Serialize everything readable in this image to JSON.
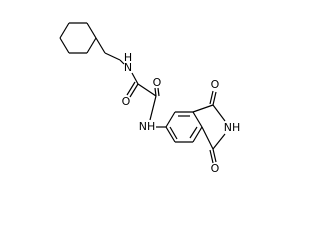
{
  "nodes": [
    {
      "label": "H"
    },
    {
      "label": "N"
    },
    {
      "label": "O"
    },
    {
      "label": "O"
    },
    {
      "label": "NH"
    },
    {
      "label": "NH"
    },
    {
      "label": "O"
    },
    {
      "label": "O"
    }
  ]
}
